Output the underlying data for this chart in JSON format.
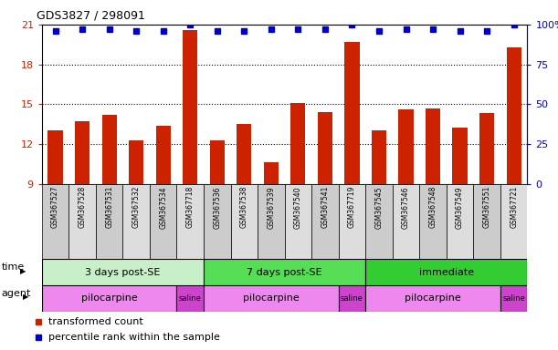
{
  "title": "GDS3827 / 298091",
  "samples": [
    "GSM367527",
    "GSM367528",
    "GSM367531",
    "GSM367532",
    "GSM367534",
    "GSM367718",
    "GSM367536",
    "GSM367538",
    "GSM367539",
    "GSM367540",
    "GSM367541",
    "GSM367719",
    "GSM367545",
    "GSM367546",
    "GSM367548",
    "GSM367549",
    "GSM367551",
    "GSM367721"
  ],
  "bar_values": [
    13.0,
    13.7,
    14.2,
    12.3,
    13.4,
    20.6,
    12.3,
    13.5,
    10.6,
    15.1,
    14.4,
    19.7,
    13.0,
    14.6,
    14.7,
    13.2,
    14.3,
    19.3
  ],
  "percentile_values": [
    96,
    97,
    97,
    96,
    96,
    100,
    96,
    96,
    97,
    97,
    97,
    100,
    96,
    97,
    97,
    96,
    96,
    100
  ],
  "bar_color": "#cc2200",
  "dot_color": "#0000cc",
  "ylim_left": [
    9,
    21
  ],
  "ylim_right": [
    0,
    100
  ],
  "yticks_left": [
    9,
    12,
    15,
    18,
    21
  ],
  "yticks_right": [
    0,
    25,
    50,
    75,
    100
  ],
  "yticklabels_right": [
    "0",
    "25",
    "50",
    "75",
    "100%"
  ],
  "dotted_lines": [
    12,
    15,
    18
  ],
  "time_groups": [
    {
      "label": "3 days post-SE",
      "start": 0,
      "end": 5,
      "color": "#c8f0c8"
    },
    {
      "label": "7 days post-SE",
      "start": 6,
      "end": 11,
      "color": "#55dd55"
    },
    {
      "label": "immediate",
      "start": 12,
      "end": 17,
      "color": "#33cc33"
    }
  ],
  "agent_groups": [
    {
      "label": "pilocarpine",
      "start": 0,
      "end": 4,
      "color": "#ee88ee"
    },
    {
      "label": "saline",
      "start": 5,
      "end": 5,
      "color": "#cc44cc"
    },
    {
      "label": "pilocarpine",
      "start": 6,
      "end": 10,
      "color": "#ee88ee"
    },
    {
      "label": "saline",
      "start": 11,
      "end": 11,
      "color": "#cc44cc"
    },
    {
      "label": "pilocarpine",
      "start": 12,
      "end": 16,
      "color": "#ee88ee"
    },
    {
      "label": "saline",
      "start": 17,
      "end": 17,
      "color": "#cc44cc"
    }
  ],
  "legend_items": [
    {
      "label": "transformed count",
      "color": "#cc2200",
      "marker": "s"
    },
    {
      "label": "percentile rank within the sample",
      "color": "#0000cc",
      "marker": "s"
    }
  ],
  "xlabel_time": "time",
  "xlabel_agent": "agent",
  "background_color": "#ffffff",
  "plot_bg_color": "#ffffff",
  "col_colors": [
    "#cccccc",
    "#dddddd"
  ]
}
